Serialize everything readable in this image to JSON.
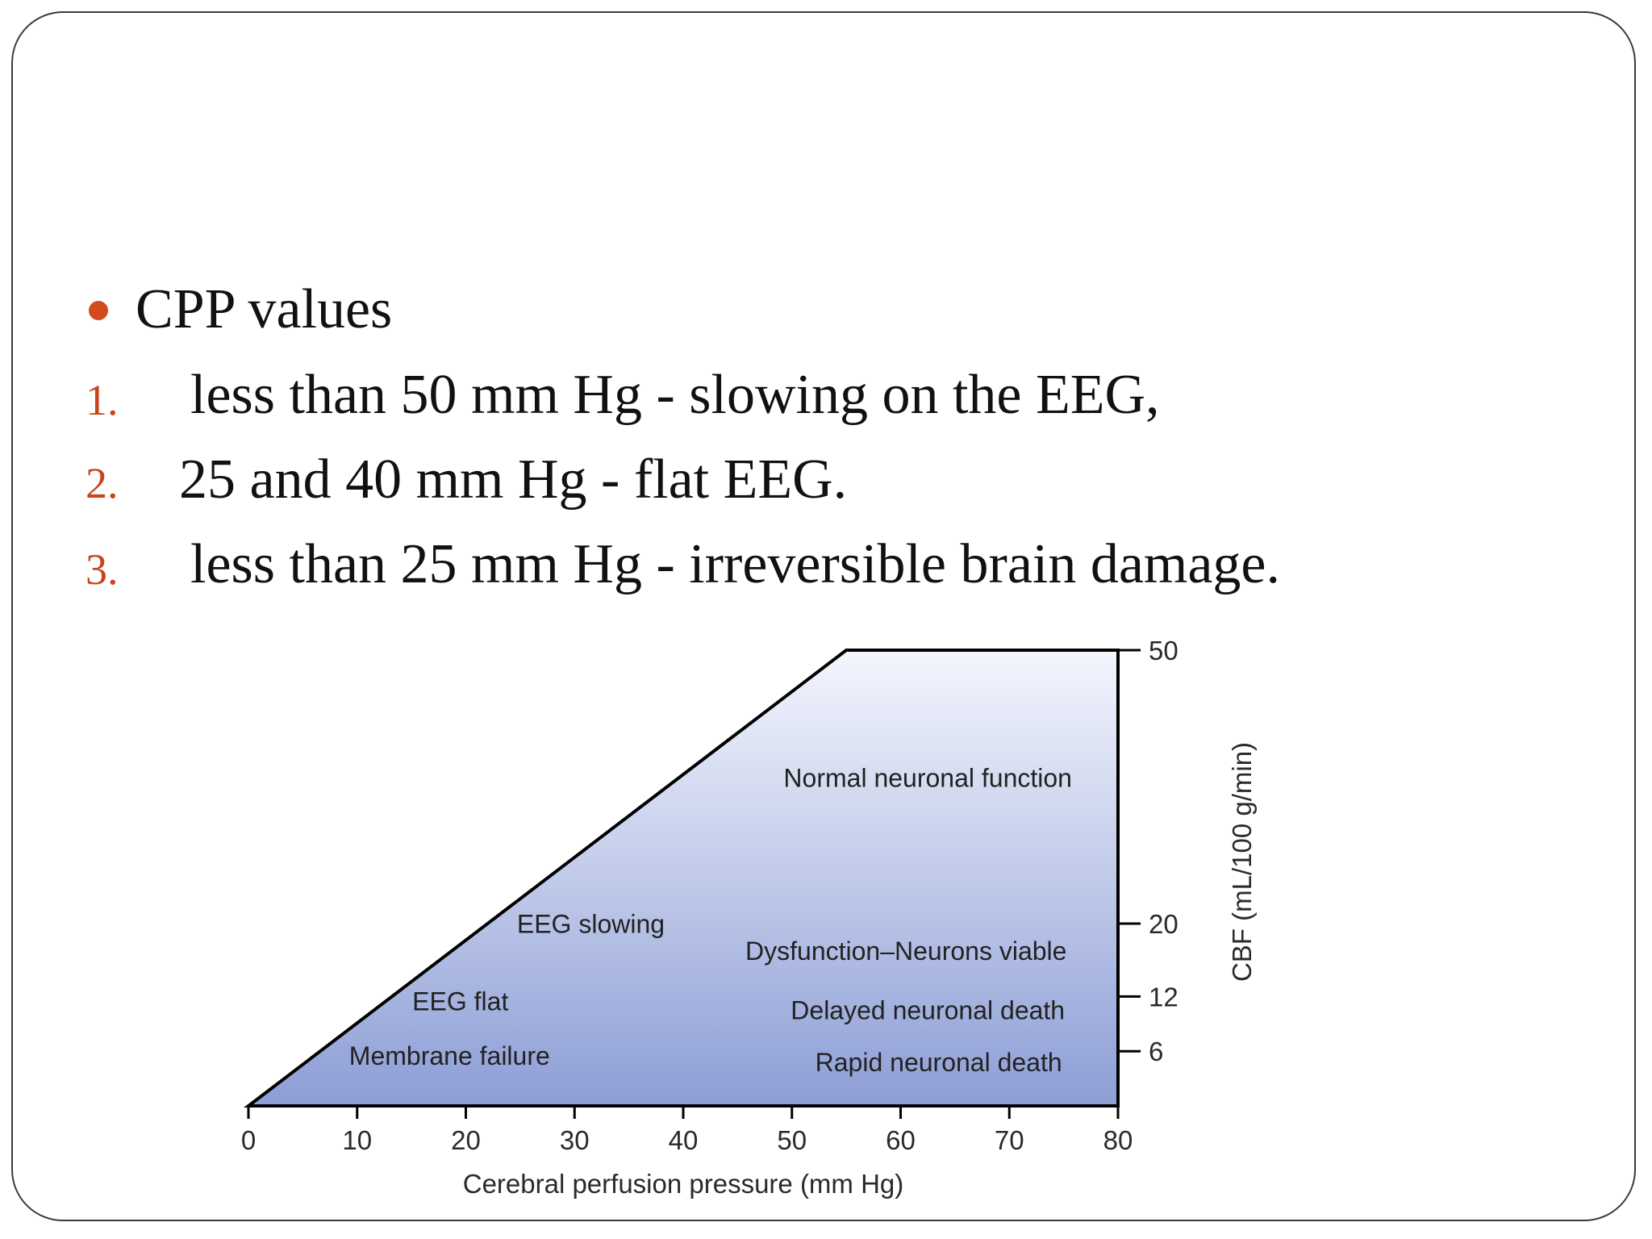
{
  "slide": {
    "bullet_color": "#d24a1e",
    "number_color": "#c8441c",
    "heading": "CPP values",
    "items": [
      {
        "number": "1.",
        "text": "less than 50 mm Hg - slowing on the EEG,"
      },
      {
        "number": "2.",
        "text": "25 and 40 mm Hg - flat EEG."
      },
      {
        "number": "3.",
        "text": "less than 25 mm Hg - irreversible brain damage."
      }
    ]
  },
  "chart_data": {
    "type": "area",
    "x": [
      0,
      55,
      80,
      80
    ],
    "y": [
      0,
      50,
      50,
      0
    ],
    "xlim": [
      0,
      80
    ],
    "xticks": [
      0,
      10,
      20,
      30,
      40,
      50,
      60,
      70,
      80
    ],
    "yticks": [
      6,
      12,
      20,
      50
    ],
    "ylim": [
      0,
      50
    ],
    "xlabel": "Cerebral perfusion pressure (mm Hg)",
    "ylabel": "CBF (mL/100 g/min)",
    "fill_top_color": "#f4f6fd",
    "fill_bottom_color": "#8d9ed6",
    "annotations": [
      {
        "text": "Normal neuronal function",
        "x": 62.5,
        "y": 35,
        "anchor": "middle"
      },
      {
        "text": "EEG slowing",
        "x": 31.5,
        "y": 19,
        "anchor": "middle"
      },
      {
        "text": "Dysfunction–Neurons viable",
        "x": 60.5,
        "y": 16,
        "anchor": "middle"
      },
      {
        "text": "EEG flat",
        "x": 19.5,
        "y": 10.5,
        "anchor": "middle"
      },
      {
        "text": "Delayed neuronal death",
        "x": 62.5,
        "y": 9.5,
        "anchor": "middle"
      },
      {
        "text": "Membrane failure",
        "x": 18.5,
        "y": 4.5,
        "anchor": "middle"
      },
      {
        "text": "Rapid neuronal death",
        "x": 63.5,
        "y": 3.8,
        "anchor": "middle"
      }
    ]
  }
}
